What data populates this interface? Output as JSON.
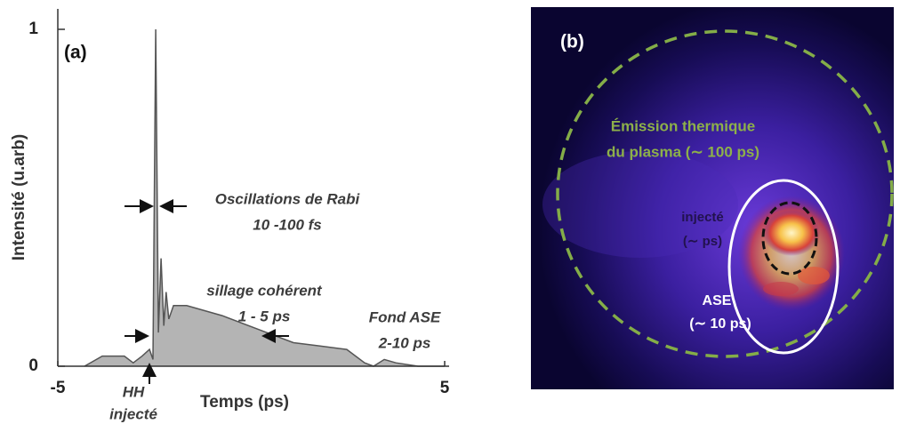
{
  "chart_data": {
    "type": "area",
    "panel_label": "(a)",
    "x_label": "Temps (ps)",
    "y_label": "Intensité (u.arb)",
    "x": [
      -4.31,
      -3.85,
      -3.28,
      -3.05,
      -2.82,
      -2.63,
      -2.54,
      -2.47,
      -2.4,
      -2.33,
      -2.26,
      -2.2,
      -2.13,
      -2.01,
      -1.67,
      -0.75,
      0.17,
      1.09,
      1.78,
      2.47,
      2.93,
      3.16,
      3.44,
      3.74,
      4.31,
      5
    ],
    "y": [
      0,
      0.03,
      0.03,
      0.01,
      0.03,
      0.05,
      0.02,
      1.0,
      0.1,
      0.32,
      0.12,
      0.22,
      0.14,
      0.18,
      0.18,
      0.15,
      0.11,
      0.07,
      0.06,
      0.05,
      0.01,
      0,
      0.02,
      0.01,
      0,
      0
    ],
    "color": "#b4b4b4",
    "xlim": [
      -5,
      5
    ],
    "xticks": [
      -5,
      5
    ],
    "ylim": [
      0,
      1
    ],
    "yticks": [
      0,
      1
    ],
    "annotations": [
      "Oscillations de Rabi",
      "10 -100 fs",
      "sillage cohérent",
      "1 - 5 ps",
      "Fond ASE",
      "2-10 ps",
      "HH",
      "injecté"
    ]
  },
  "panel_b": {
    "label": "(b)",
    "annotations": [
      "Émission thermique",
      "du plasma (∼ 100 ps)",
      "injecté",
      "(∼ ps)",
      "ASE",
      "(∼ 10 ps)"
    ]
  }
}
